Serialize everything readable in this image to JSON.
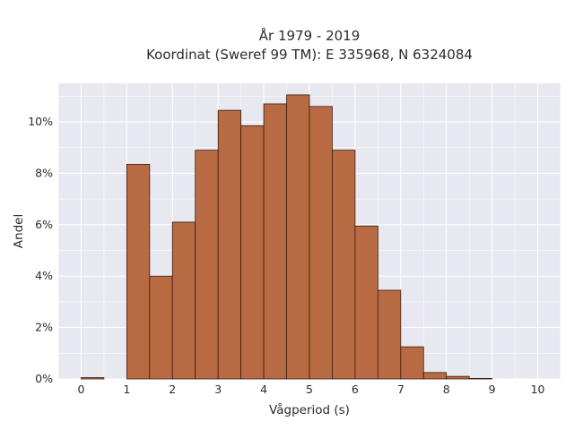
{
  "chart_data": {
    "type": "bar",
    "title_line1": "År 1979 - 2019",
    "title_line2": "Koordinat (Sweref 99 TM): E 335968, N 6324084",
    "xlabel": "Vågperiod (s)",
    "ylabel": "Andel",
    "xlim": [
      -0.5,
      10.5
    ],
    "ylim": [
      0,
      11.5
    ],
    "x_ticks": [
      0,
      1,
      2,
      3,
      4,
      5,
      6,
      7,
      8,
      9,
      10
    ],
    "y_ticks": [
      0,
      2,
      4,
      6,
      8,
      10
    ],
    "y_tick_format": "percent",
    "bin_width": 0.5,
    "bins": [
      {
        "start": 0.0,
        "value": 0.05
      },
      {
        "start": 0.5,
        "value": 0.0
      },
      {
        "start": 1.0,
        "value": 8.35
      },
      {
        "start": 1.5,
        "value": 4.0
      },
      {
        "start": 2.0,
        "value": 6.1
      },
      {
        "start": 2.5,
        "value": 8.9
      },
      {
        "start": 3.0,
        "value": 10.45
      },
      {
        "start": 3.5,
        "value": 9.85
      },
      {
        "start": 4.0,
        "value": 10.7
      },
      {
        "start": 4.5,
        "value": 11.05
      },
      {
        "start": 5.0,
        "value": 10.6
      },
      {
        "start": 5.5,
        "value": 8.9
      },
      {
        "start": 6.0,
        "value": 5.95
      },
      {
        "start": 6.5,
        "value": 3.45
      },
      {
        "start": 7.0,
        "value": 1.25
      },
      {
        "start": 7.5,
        "value": 0.25
      },
      {
        "start": 8.0,
        "value": 0.1
      },
      {
        "start": 8.5,
        "value": 0.02
      }
    ],
    "grid": true,
    "colors": {
      "bar_fill": "#b86a42",
      "bar_edge": "#3a1e10",
      "plot_bg": "#e8e8f0",
      "grid": "#ffffff"
    }
  }
}
